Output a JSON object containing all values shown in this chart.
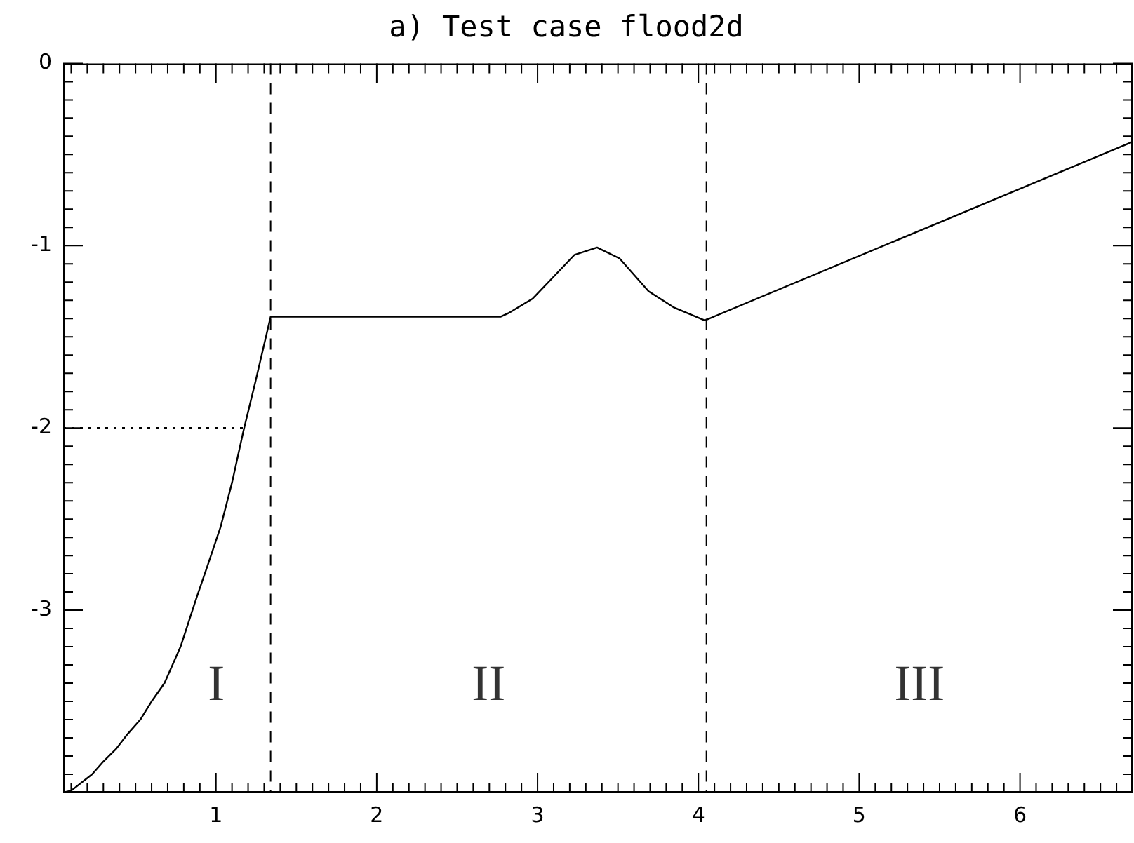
{
  "chart_data": {
    "type": "line",
    "title": "a) Test case flood2d",
    "series": [
      {
        "color": "#000000",
        "x": [
          0.05,
          0.1,
          0.23,
          0.3,
          0.38,
          0.45,
          0.53,
          0.6,
          0.68,
          0.78,
          0.88,
          0.95,
          1.03,
          1.1,
          1.17,
          1.25,
          1.34,
          2.77,
          2.82,
          2.97,
          3.1,
          3.23,
          3.37,
          3.51,
          3.69,
          3.85,
          4.04,
          6.7
        ],
        "values": [
          -4.0,
          -3.99,
          -3.9,
          -3.83,
          -3.76,
          -3.68,
          -3.6,
          -3.5,
          -3.4,
          -3.2,
          -2.93,
          -2.75,
          -2.54,
          -2.3,
          -2.02,
          -1.73,
          -1.39,
          -1.39,
          -1.37,
          -1.29,
          -1.17,
          -1.05,
          -1.01,
          -1.07,
          -1.25,
          -1.34,
          -1.41,
          -0.43
        ]
      },
      {
        "color": "#000000",
        "line_style": "dotted",
        "x": [
          0.05,
          1.17
        ],
        "values": [
          -2,
          -2
        ]
      }
    ],
    "xlim": [
      0.05,
      6.7
    ],
    "xticks": [
      1,
      2,
      3,
      4,
      5,
      6
    ],
    "ylim": [
      -4,
      0
    ],
    "yticks": [
      0,
      -1,
      -2,
      -3
    ],
    "ref_lines": [
      {
        "axis": "x",
        "value": 1.34,
        "line_style": "dashed",
        "color": "#000000"
      },
      {
        "axis": "x",
        "value": 4.05,
        "line_style": "dashed",
        "color": "#000000"
      }
    ],
    "annotations": [
      "I",
      "II",
      "III"
    ],
    "grid": false,
    "legend": false,
    "marker": "none",
    "line_style": "solid"
  }
}
